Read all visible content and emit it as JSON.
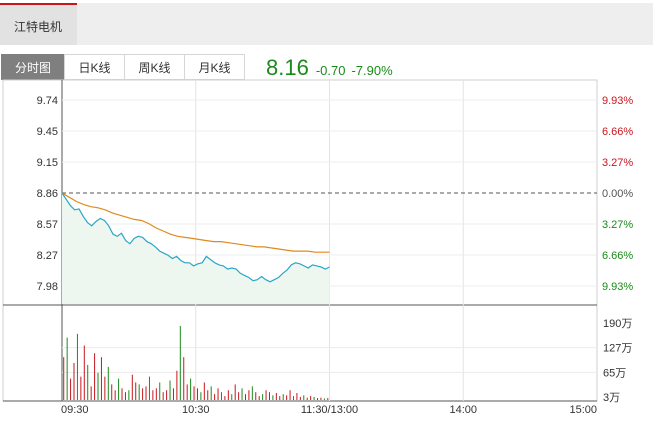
{
  "stock_name": "江特电机",
  "tabs": [
    {
      "label": "分时图",
      "active": true
    },
    {
      "label": "日K线",
      "active": false
    },
    {
      "label": "周K线",
      "active": false
    },
    {
      "label": "月K线",
      "active": false
    }
  ],
  "quote": {
    "price": "8.16",
    "change": "-0.70",
    "change_pct": "-7.90%"
  },
  "colors": {
    "up": "#c8161d",
    "down": "#1a8a1a",
    "price_line": "#2aa6c9",
    "avg_line": "#e08a1e",
    "area_fill": "#eef7ef"
  },
  "chart_data": {
    "type": "line",
    "title": "",
    "prev_close": 8.86,
    "y_ticks": [
      "9.74",
      "9.45",
      "9.15",
      "8.86",
      "8.57",
      "8.27",
      "7.98"
    ],
    "pct_ticks_up": [
      "9.93%",
      "6.66%",
      "3.27%",
      "0.00%"
    ],
    "pct_ticks_down": [
      "3.27%",
      "6.66%",
      "9.93%"
    ],
    "ylim": [
      7.98,
      9.74
    ],
    "x_ticks": [
      "09:30",
      "10:30",
      "11:30/13:00",
      "14:00",
      "15:00"
    ],
    "volume_ticks": [
      "190万",
      "127万",
      "65万",
      "3万"
    ],
    "volume_max_wan": 190,
    "series": [
      {
        "values": [
          8.86,
          8.8,
          8.74,
          8.7,
          8.71,
          8.64,
          8.58,
          8.55,
          8.59,
          8.62,
          8.6,
          8.55,
          8.47,
          8.45,
          8.48,
          8.41,
          8.38,
          8.43,
          8.45,
          8.44,
          8.4,
          8.38,
          8.35,
          8.31,
          8.29,
          8.27,
          8.24,
          8.26,
          8.22,
          8.2,
          8.2,
          8.17,
          8.19,
          8.2,
          8.26,
          8.23,
          8.2,
          8.18,
          8.17,
          8.14,
          8.15,
          8.14,
          8.1,
          8.08,
          8.06,
          8.03,
          8.04,
          8.07,
          8.04,
          8.02,
          8.04,
          8.06,
          8.1,
          8.13,
          8.18,
          8.2,
          8.19,
          8.17,
          8.15,
          8.18,
          8.17,
          8.16,
          8.14,
          8.16
        ]
      },
      {
        "values": [
          8.86,
          8.82,
          8.78,
          8.75,
          8.73,
          8.72,
          8.7,
          8.67,
          8.65,
          8.63,
          8.61,
          8.6,
          8.57,
          8.53,
          8.5,
          8.47,
          8.45,
          8.44,
          8.43,
          8.42,
          8.41,
          8.4,
          8.4,
          8.39,
          8.38,
          8.37,
          8.36,
          8.35,
          8.35,
          8.34,
          8.33,
          8.32,
          8.31,
          8.31,
          8.31,
          8.3,
          8.3,
          8.3
        ]
      }
    ],
    "volumes": [
      110,
      160,
      55,
      95,
      170,
      60,
      140,
      90,
      35,
      120,
      70,
      110,
      60,
      85,
      40,
      25,
      55,
      30,
      20,
      25,
      65,
      45,
      40,
      30,
      35,
      60,
      25,
      30,
      45,
      20,
      25,
      50,
      30,
      75,
      190,
      110,
      40,
      55,
      35,
      30,
      20,
      45,
      25,
      35,
      15,
      30,
      20,
      10,
      25,
      15,
      40,
      20,
      30,
      15,
      25,
      35,
      20,
      10,
      15,
      25,
      20,
      12,
      18,
      10,
      15,
      12,
      25,
      10,
      18,
      8,
      12,
      6,
      10,
      8,
      5,
      6,
      4,
      5
    ]
  }
}
